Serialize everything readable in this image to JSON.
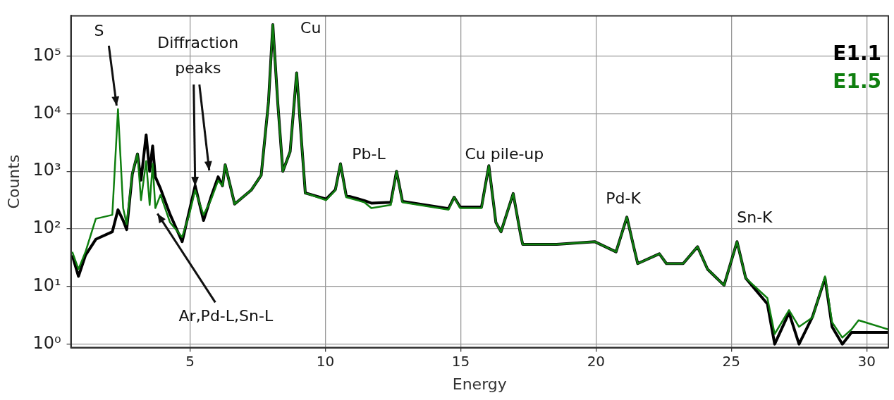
{
  "chart_data": {
    "type": "line",
    "xlabel": "Energy",
    "ylabel": "Counts",
    "x": [
      0.65,
      0.88,
      1.14,
      1.52,
      2.13,
      2.34,
      2.53,
      2.66,
      2.87,
      3.06,
      3.19,
      3.38,
      3.51,
      3.62,
      3.72,
      3.91,
      4.26,
      4.71,
      4.97,
      5.19,
      5.5,
      5.77,
      6.04,
      6.2,
      6.3,
      6.65,
      7.26,
      7.63,
      7.9,
      8.06,
      8.24,
      8.43,
      8.7,
      8.94,
      9.12,
      9.26,
      10.03,
      10.37,
      10.56,
      10.77,
      11.44,
      11.7,
      12.42,
      12.63,
      12.85,
      14.55,
      14.76,
      14.98,
      15.77,
      16.04,
      16.3,
      16.49,
      16.94,
      17.21,
      17.29,
      18.54,
      19.95,
      20.74,
      21.14,
      21.41,
      21.54,
      22.34,
      22.6,
      23.22,
      23.75,
      24.12,
      24.73,
      25.21,
      25.53,
      26.33,
      26.6,
      27.13,
      27.5,
      28.0,
      28.46,
      28.72,
      29.1,
      29.44,
      29.7,
      30.8
    ],
    "series": [
      {
        "name": "E1.1",
        "color": "#000000",
        "values": [
          35,
          15,
          35,
          66,
          89,
          215,
          140,
          97,
          900,
          2000,
          700,
          4300,
          1000,
          2750,
          800,
          500,
          180,
          60,
          200,
          560,
          140,
          350,
          800,
          560,
          1300,
          270,
          470,
          850,
          16000,
          350000,
          16000,
          1000,
          2200,
          51000,
          3300,
          420,
          330,
          480,
          1350,
          380,
          310,
          280,
          290,
          1000,
          300,
          225,
          355,
          240,
          240,
          1250,
          130,
          89,
          410,
          81,
          54,
          54,
          60,
          40,
          160,
          45,
          25,
          37,
          25,
          25,
          49,
          20,
          10.5,
          60,
          14,
          5,
          1,
          3.5,
          1,
          3,
          14,
          2,
          1,
          1.6,
          1.6,
          1.6
        ]
      },
      {
        "name": "E1.5",
        "color": "#0f7f0f",
        "values": [
          40,
          20,
          40,
          150,
          175,
          12000,
          230,
          120,
          930,
          2000,
          315,
          1500,
          260,
          1350,
          230,
          390,
          130,
          72,
          175,
          470,
          175,
          315,
          690,
          560,
          1300,
          270,
          470,
          850,
          16000,
          350000,
          16000,
          1000,
          2200,
          51000,
          3300,
          420,
          315,
          470,
          1350,
          355,
          290,
          230,
          260,
          1000,
          290,
          215,
          355,
          230,
          230,
          1250,
          130,
          89,
          410,
          81,
          54,
          54,
          60,
          40,
          160,
          45,
          25,
          37,
          25,
          25,
          49,
          20,
          10.5,
          60,
          14,
          6.3,
          1.5,
          3.9,
          2,
          2.9,
          15,
          2.4,
          1.3,
          1.8,
          2.6,
          1.8
        ]
      }
    ],
    "xlim": [
      0.6,
      30.8
    ],
    "xticks": [
      5,
      10,
      15,
      20,
      25,
      30
    ],
    "ylim": [
      0.87,
      500000
    ],
    "yticks": [
      {
        "value": 1,
        "label": "10⁰"
      },
      {
        "value": 10,
        "label": "10¹"
      },
      {
        "value": 100,
        "label": "10²"
      },
      {
        "value": 1000,
        "label": "10³"
      },
      {
        "value": 10000,
        "label": "10⁴"
      },
      {
        "value": 100000,
        "label": "10⁵"
      }
    ],
    "log": "y",
    "grid": true,
    "legend": "top right",
    "marker": "none",
    "line_style": "solid",
    "annotations": [
      {
        "text": "S",
        "x": 2.34,
        "y": 12000
      },
      {
        "text": "Diffraction peaks",
        "x": 5.19,
        "y": 470
      },
      {
        "text": "Cu",
        "x": 8.94,
        "y": 51000
      },
      {
        "text": "Pb-L",
        "x": 10.56,
        "y": 1350
      },
      {
        "text": "Cu pile-up",
        "x": 16.04,
        "y": 1250
      },
      {
        "text": "Pd-K",
        "x": 21.14,
        "y": 160
      },
      {
        "text": "Sn-K",
        "x": 25.21,
        "y": 60
      },
      {
        "text": "Ar,Pd-L,Sn-L",
        "x": 3.72,
        "y": 230
      }
    ]
  }
}
